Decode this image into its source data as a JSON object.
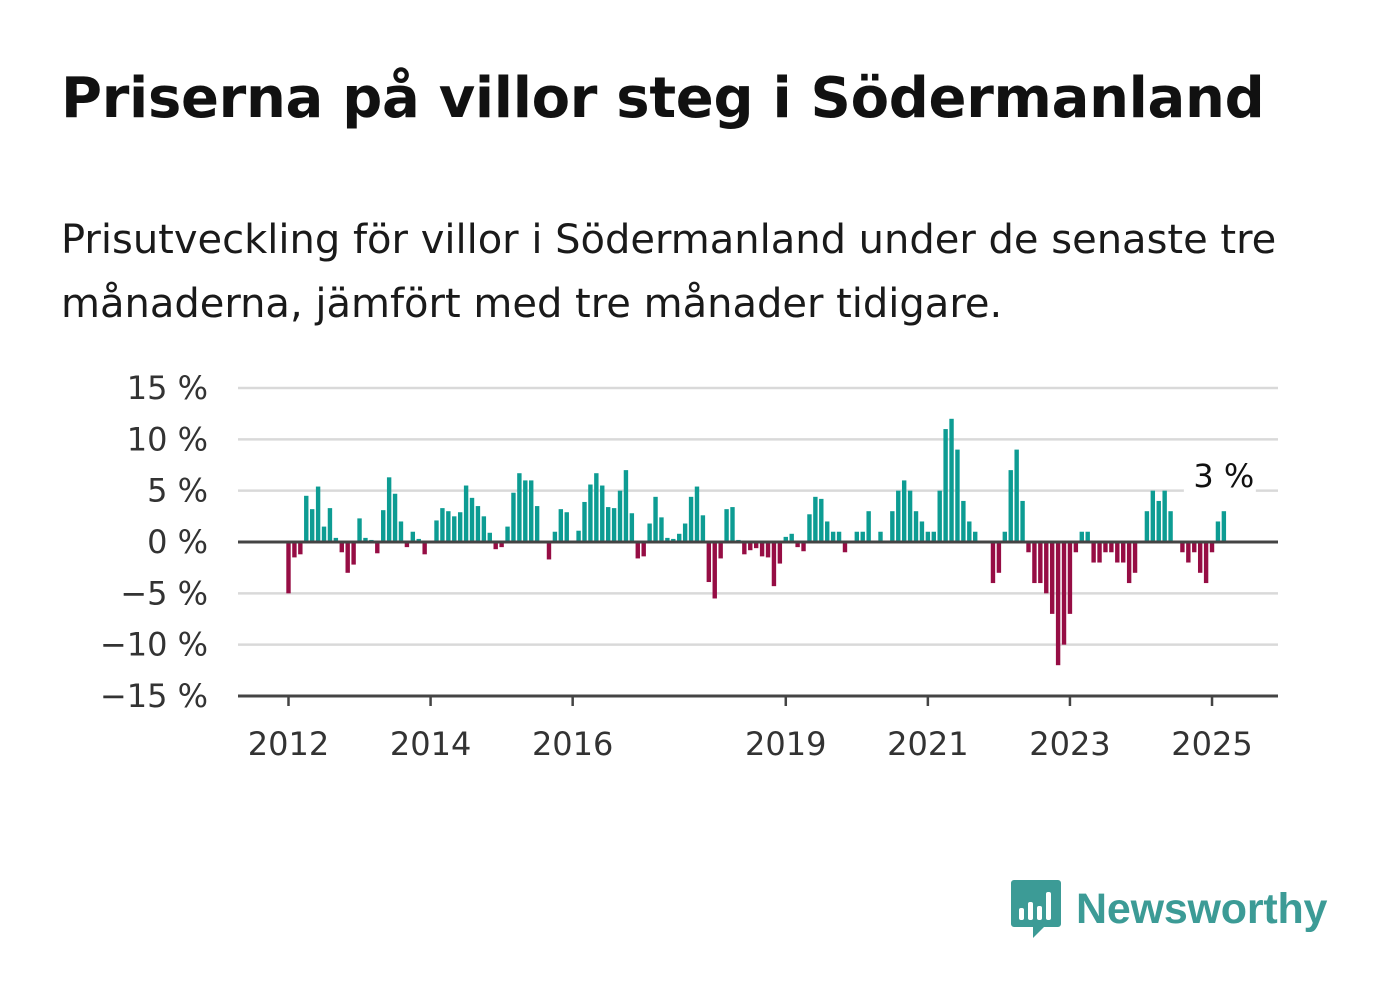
{
  "title": "Priserna på villor steg i Södermanland",
  "subtitle": "Prisutveckling för villor i Södermanland under de senaste tre månaderna, jämfört med tre månader tidigare.",
  "brand": {
    "name": "Newsworthy",
    "icon": "newsworthy-logo-icon",
    "color": "#3c9b96"
  },
  "chart_data": {
    "type": "bar",
    "x_start": "2012-01",
    "interval": "month",
    "x_ticks": [
      "2012",
      "2014",
      "2016",
      "2019",
      "2021",
      "2023",
      "2025"
    ],
    "y_ticks": [
      "15 %",
      "10 %",
      "5 %",
      "0 %",
      "−5 %",
      "−10 %",
      "−15 %"
    ],
    "ylim": [
      -15,
      15
    ],
    "unit": "%",
    "grid": true,
    "colors": {
      "positive": "#0d9c93",
      "negative": "#960d44"
    },
    "annotation": {
      "label": "3 %",
      "target": "last"
    },
    "values": [
      -5,
      -1.5,
      -1.2,
      4.5,
      3.2,
      5.4,
      1.5,
      3.3,
      0.4,
      -1.0,
      -3.0,
      -2.2,
      2.3,
      0.4,
      0.2,
      -1.1,
      3.1,
      6.3,
      4.7,
      2.0,
      -0.5,
      1.0,
      0.3,
      -1.2,
      0.1,
      2.1,
      3.3,
      3.0,
      2.5,
      2.9,
      5.5,
      4.3,
      3.5,
      2.5,
      0.9,
      -0.7,
      -0.5,
      1.5,
      4.8,
      6.7,
      6.0,
      6.0,
      3.5,
      0,
      -1.7,
      1.0,
      3.2,
      2.9,
      0,
      1.1,
      3.9,
      5.6,
      6.7,
      5.5,
      3.4,
      3.3,
      5.0,
      7.0,
      2.8,
      -1.6,
      -1.4,
      1.8,
      4.4,
      2.4,
      0.4,
      0.3,
      0.8,
      1.8,
      4.4,
      5.4,
      2.6,
      -3.9,
      -5.5,
      -1.6,
      3.2,
      3.4,
      0.2,
      -1.2,
      -0.8,
      -0.6,
      -1.4,
      -1.5,
      -4.3,
      -2.1,
      0.5,
      0.8,
      -0.5,
      -0.9,
      2.7,
      4.4,
      4.2,
      2.0,
      1.0,
      1.0,
      -1.0,
      0,
      1.0,
      1.0,
      3.0,
      0,
      1.0,
      0,
      3.0,
      5.0,
      6.0,
      5.0,
      3.0,
      2.0,
      1.0,
      1.0,
      5.0,
      11.0,
      12.0,
      9.0,
      4.0,
      2.0,
      1.0,
      0,
      0,
      -4.0,
      -3.0,
      1.0,
      7.0,
      9.0,
      4.0,
      -1.0,
      -4.0,
      -4.0,
      -5.0,
      -7.0,
      -12.0,
      -10.0,
      -7.0,
      -1.0,
      1.0,
      1.0,
      -2.0,
      -2.0,
      -1.0,
      -1.0,
      -2.0,
      -2.0,
      -4.0,
      -3.0,
      0,
      3.0,
      5.0,
      4.0,
      5.0,
      3.0,
      0,
      -1.0,
      -2.0,
      -1.0,
      -3.0,
      -4.0,
      -1.0,
      2.0,
      3.0
    ]
  }
}
